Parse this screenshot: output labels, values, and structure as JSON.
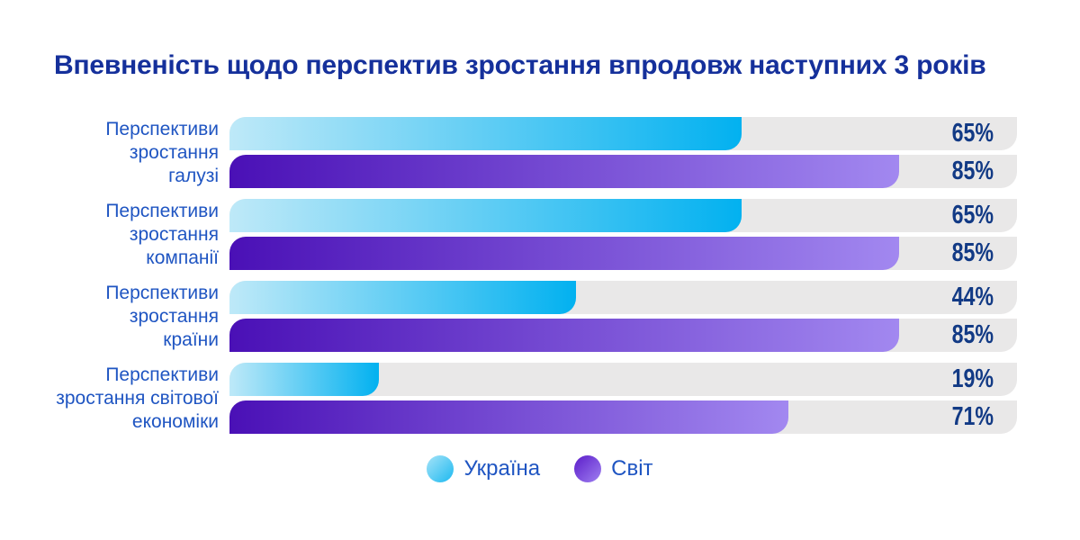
{
  "title": "Впевненість щодо перспектив зростання впродовж наступних 3 років",
  "chart_data": {
    "type": "bar",
    "orientation": "horizontal",
    "title": "Впевненість щодо перспектив зростання впродовж наступних 3 років",
    "categories": [
      "Перспективи зростання галузі",
      "Перспективи зростання компанії",
      "Перспективи зростання країни",
      "Перспективи зростання світової економіки"
    ],
    "category_lines": [
      [
        "Перспективи",
        "зростання",
        "галузі"
      ],
      [
        "Перспективи",
        "зростання",
        "компанії"
      ],
      [
        "Перспективи",
        "зростання",
        "країни"
      ],
      [
        "Перспективи",
        "зростання світової",
        "економіки"
      ]
    ],
    "series": [
      {
        "name": "Україна",
        "key": "ukraine",
        "values": [
          65,
          65,
          44,
          19
        ],
        "gradient": [
          "#bee9f8",
          "#02b1f0"
        ],
        "legend_gradient": [
          "#a6e3f8",
          "#1cb9f0"
        ]
      },
      {
        "name": "Світ",
        "key": "world",
        "values": [
          85,
          85,
          85,
          71
        ],
        "gradient": [
          "#4a10b6",
          "#a288f0"
        ],
        "legend_gradient": [
          "#5b1cc9",
          "#9f80f1"
        ]
      }
    ],
    "unit": "%",
    "xlim": [
      0,
      100
    ],
    "value_labels_shown": true,
    "grid": false,
    "legend_position": "bottom",
    "colors": {
      "background": "#ffffff",
      "track": "#e9e8e8",
      "title": "#15309b",
      "label": "#1f55c2",
      "value": "#123a85"
    }
  }
}
